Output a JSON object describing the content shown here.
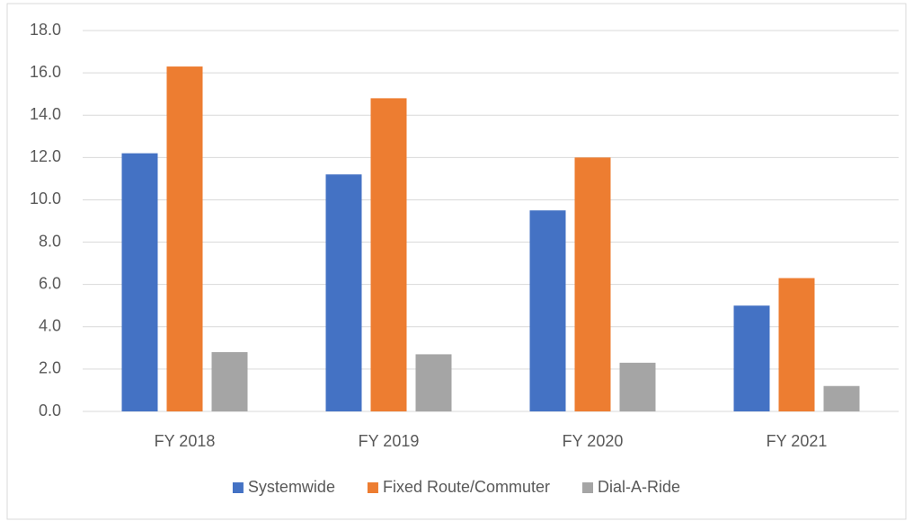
{
  "chart_data": {
    "type": "bar",
    "categories": [
      "FY 2018",
      "FY 2019",
      "FY 2020",
      "FY 2021"
    ],
    "series": [
      {
        "name": "Systemwide",
        "color": "#4472c4",
        "values": [
          12.2,
          11.2,
          9.5,
          5.0
        ]
      },
      {
        "name": "Fixed Route/Commuter",
        "color": "#ed7d31",
        "values": [
          16.3,
          14.8,
          12.0,
          6.3
        ]
      },
      {
        "name": "Dial-A-Ride",
        "color": "#a5a5a5",
        "values": [
          2.8,
          2.7,
          2.3,
          1.2
        ]
      }
    ],
    "ylim": [
      0,
      18
    ],
    "yticks": [
      {
        "value": 0,
        "label": "0.0"
      },
      {
        "value": 2,
        "label": "2.0"
      },
      {
        "value": 4,
        "label": "4.0"
      },
      {
        "value": 6,
        "label": "6.0"
      },
      {
        "value": 8,
        "label": "8.0"
      },
      {
        "value": 10,
        "label": "10.0"
      },
      {
        "value": 12,
        "label": "12.0"
      },
      {
        "value": 14,
        "label": "14.0"
      },
      {
        "value": 16,
        "label": "16.0"
      },
      {
        "value": 18,
        "label": "18.0"
      }
    ],
    "grid": true,
    "legend": "bottom"
  }
}
